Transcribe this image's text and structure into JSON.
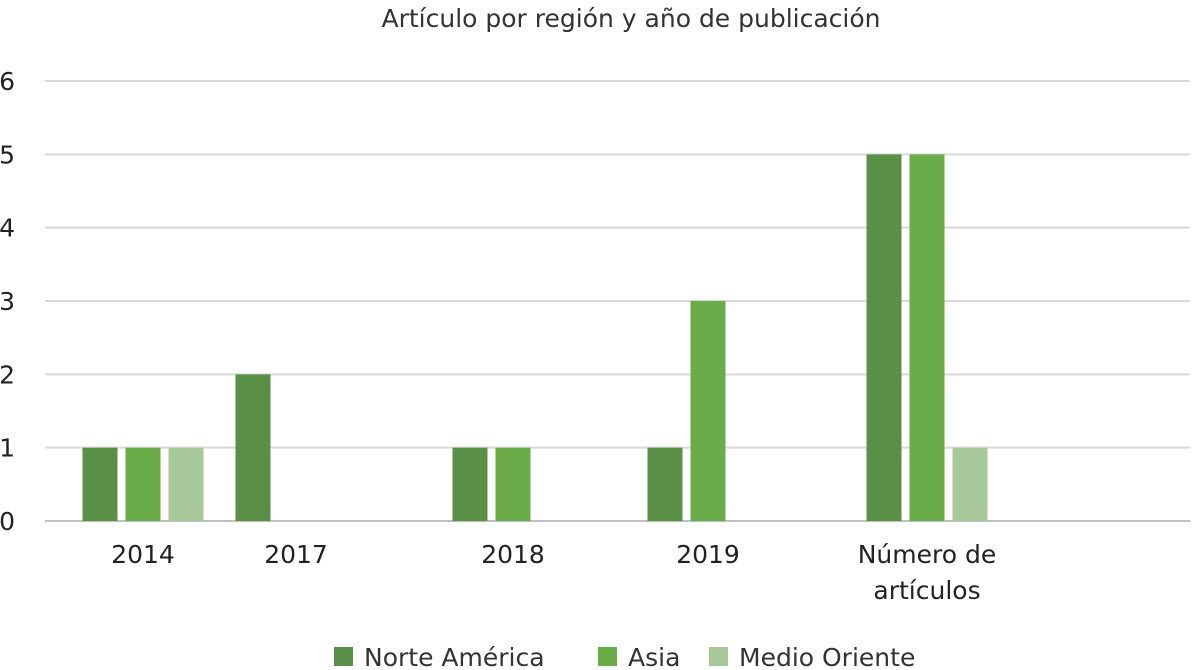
{
  "chart_data": {
    "type": "bar",
    "title": "Artículo por región y año de publicación",
    "categories": [
      "2014",
      "2017",
      "2018",
      "2019",
      "Número de artículos"
    ],
    "series": [
      {
        "name": "Norte América",
        "color": "#5a8f47",
        "values": [
          1,
          2,
          1,
          1,
          5
        ]
      },
      {
        "name": "Asia",
        "color": "#6aab4a",
        "values": [
          1,
          0,
          1,
          3,
          5
        ]
      },
      {
        "name": "Medio Oriente",
        "color": "#a8c89a",
        "values": [
          1,
          0,
          0,
          0,
          1
        ]
      }
    ],
    "ylim": [
      0,
      6
    ],
    "yticks": [
      0,
      1,
      2,
      3,
      4,
      5,
      6
    ],
    "grid": true,
    "legend": "bottom"
  }
}
